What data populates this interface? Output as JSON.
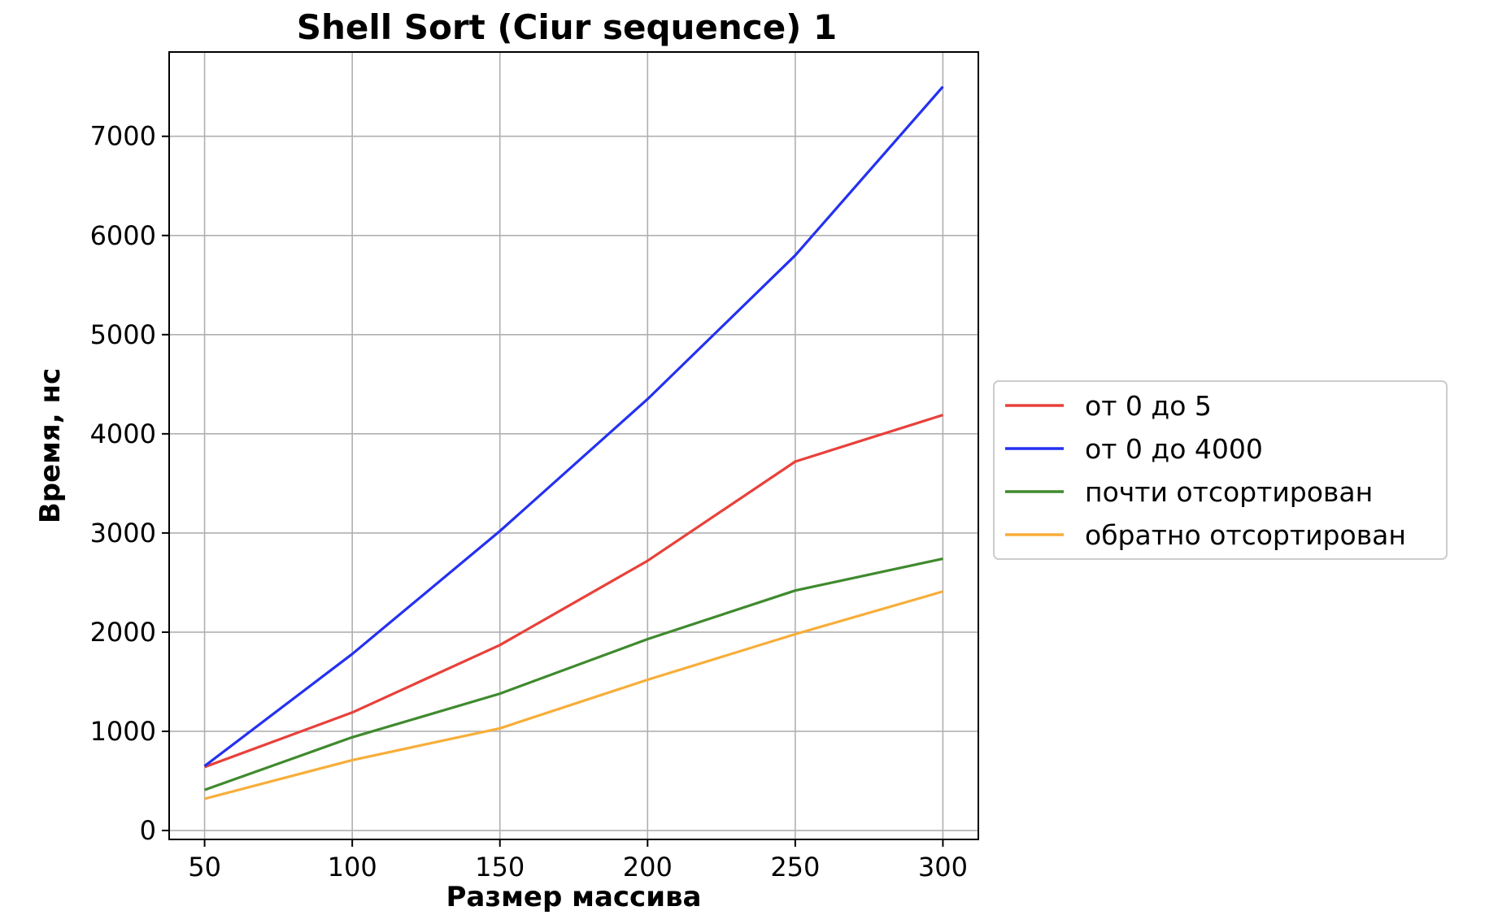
{
  "chart_data": {
    "type": "line",
    "title": "Shell Sort (Ciur sequence) 1",
    "xlabel": "Размер массива",
    "ylabel": "Время, нс",
    "x": [
      50,
      100,
      150,
      200,
      250,
      300
    ],
    "xlim": [
      38,
      312
    ],
    "ylim": [
      -90,
      7850
    ],
    "xticks": [
      50,
      100,
      150,
      200,
      250,
      300
    ],
    "yticks": [
      0,
      1000,
      2000,
      3000,
      4000,
      5000,
      6000,
      7000
    ],
    "grid": true,
    "legend_position": "center-right, outside plot",
    "series": [
      {
        "name": "от 0 до 5",
        "color": "#e8413a",
        "values": [
          640,
          1190,
          1870,
          2720,
          3720,
          4190
        ]
      },
      {
        "name": "от 0 до 4000",
        "color": "#2431f0",
        "values": [
          650,
          1780,
          3020,
          4350,
          5800,
          7500
        ]
      },
      {
        "name": "почти отсортирован",
        "color": "#3f8a2e",
        "values": [
          410,
          940,
          1380,
          1930,
          2420,
          2740
        ]
      },
      {
        "name": "обратно отсортирован",
        "color": "#f7ae3a",
        "values": [
          320,
          710,
          1030,
          1520,
          1980,
          2410
        ]
      }
    ]
  }
}
